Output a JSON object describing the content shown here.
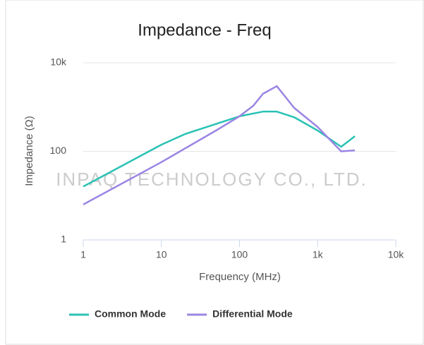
{
  "chart_data": {
    "type": "line",
    "title": "Impedance - Freq",
    "x_label": "Frequency (MHz)",
    "y_label": "Impedance (Ω)",
    "watermark": "INPAQ TECHNOLOGY CO., LTD.",
    "log_x": true,
    "log_y": true,
    "grid": true,
    "legend": "bottom",
    "xlim": [
      1,
      10000
    ],
    "xticks": [
      1,
      10,
      100,
      {
        "value": 1000,
        "label": "1k"
      },
      {
        "value": 10000,
        "label": "10k"
      }
    ],
    "ylim": [
      1,
      10000
    ],
    "yticks": [
      1,
      100,
      {
        "value": 10000,
        "label": "10k"
      }
    ],
    "x": [
      1,
      10,
      20,
      50,
      100,
      150,
      200,
      300,
      500,
      1000,
      2000,
      3000
    ],
    "series": [
      {
        "name": "Common Mode",
        "color": "#29c2b4",
        "values": [
          16,
          141,
          245,
          null,
          620,
          null,
          790,
          790,
          590,
          295,
          127,
          220
        ]
      },
      {
        "name": "Differential Mode",
        "color": "#9b85e3",
        "values": [
          6.3,
          57,
          null,
          295,
          620,
          1070,
          2000,
          2970,
          960,
          355,
          100,
          105
        ]
      }
    ]
  }
}
